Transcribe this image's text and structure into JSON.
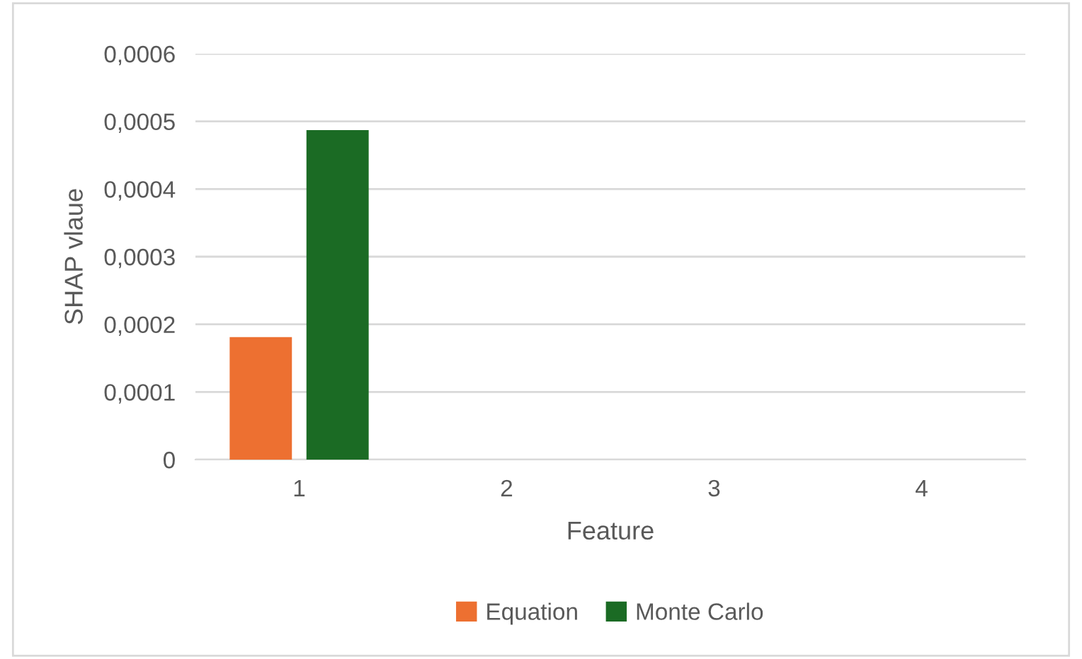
{
  "chart_data": {
    "type": "bar",
    "xlabel": "Feature",
    "ylabel": "SHAP vlaue",
    "categories": [
      "1",
      "2",
      "3",
      "4"
    ],
    "series": [
      {
        "name": "Equation",
        "color": "#ed7031",
        "values": [
          0.000181,
          null,
          null,
          null
        ]
      },
      {
        "name": "Monte Carlo",
        "color": "#1b6b24",
        "values": [
          0.000487,
          null,
          null,
          null
        ]
      }
    ],
    "ylim": [
      0,
      0.0006
    ],
    "yticks": [
      0,
      {
        "value": 0.0001,
        "label": "0,0001"
      },
      {
        "value": 0.0002,
        "label": "0,0002"
      },
      {
        "value": 0.0003,
        "label": "0,0003"
      },
      {
        "value": 0.0004,
        "label": "0,0004"
      },
      {
        "value": 0.0005,
        "label": "0,0005"
      },
      {
        "value": 0.0006,
        "label": "0,0006"
      }
    ],
    "grid": "y",
    "legend": "bottom"
  }
}
